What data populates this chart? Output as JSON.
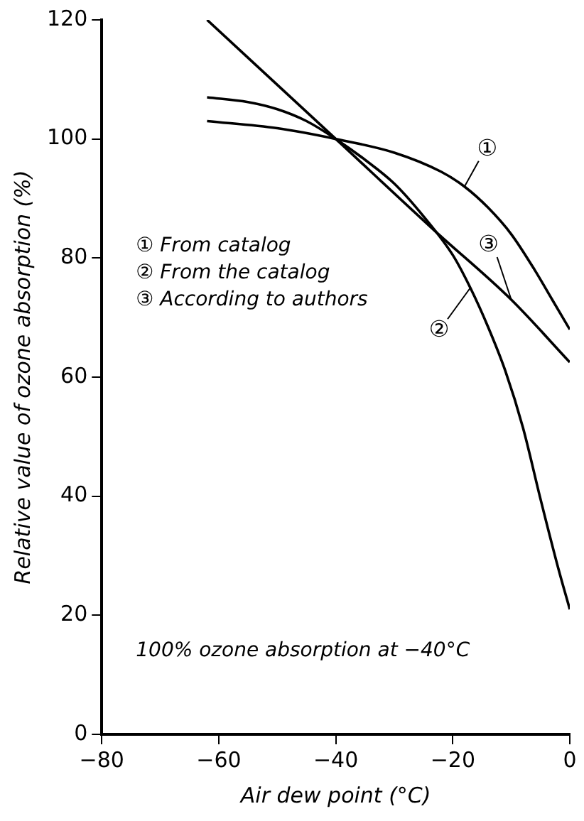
{
  "chart_data": {
    "type": "line",
    "xlabel": "Air dew point (°C)",
    "ylabel": "Relative value of ozone absorption (%)",
    "xlim": [
      -80,
      0
    ],
    "xticks": [
      -80,
      -60,
      -40,
      -20,
      0
    ],
    "ylim": [
      0,
      120
    ],
    "yticks": [
      0,
      20,
      40,
      60,
      80,
      100,
      120
    ],
    "grid": false,
    "marker": "none",
    "line_style": "solid",
    "series": [
      {
        "name": "①",
        "color": "#000000",
        "x": [
          -62,
          -50,
          -40,
          -30,
          -22,
          -18,
          -14,
          -10,
          -6,
          -3,
          0
        ],
        "values": [
          103,
          101.8,
          100,
          97.7,
          94.5,
          92,
          88.5,
          84,
          78,
          73,
          68
        ]
      },
      {
        "name": "②",
        "color": "#000000",
        "x": [
          -62,
          -55,
          -50,
          -45,
          -40,
          -35,
          -30,
          -25,
          -20,
          -17,
          -14,
          -11,
          -8,
          -5,
          -2,
          0
        ],
        "values": [
          107,
          106.2,
          105,
          103,
          100,
          96.5,
          92.5,
          87,
          80.5,
          75,
          68.5,
          61,
          51.5,
          39.5,
          28,
          21
        ]
      },
      {
        "name": "③",
        "color": "#000000",
        "x": [
          -62,
          -40,
          -23,
          -10,
          0
        ],
        "values": [
          120,
          100,
          84.5,
          73,
          62.5
        ]
      }
    ],
    "annotations": [
      "① From catalog",
      "② From the catalog",
      "③ According to authors",
      "100% ozone absorption at −40°C"
    ]
  }
}
